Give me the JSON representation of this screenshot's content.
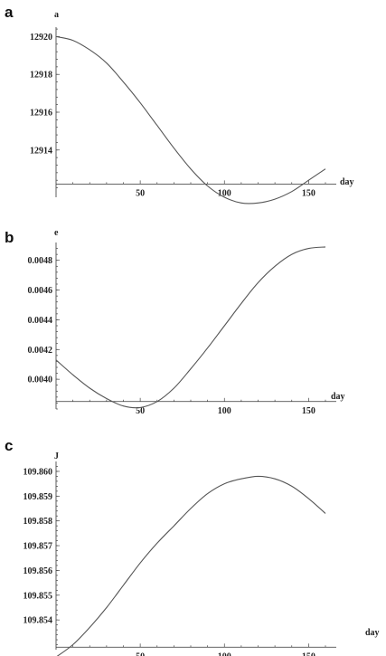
{
  "chart_data": [
    {
      "type": "line",
      "panel": "a",
      "ylabel": "a",
      "xlabel": "day",
      "xlim": [
        0,
        160
      ],
      "ylim": [
        12911.5,
        12920.5
      ],
      "x_axis_y": 12912.2,
      "xticks": [
        50,
        100,
        150
      ],
      "yticks": [
        12914,
        12916,
        12918,
        12920
      ],
      "ytick_labels": [
        "12914",
        "12916",
        "12918",
        "12920"
      ],
      "x": [
        0,
        10,
        20,
        30,
        40,
        50,
        60,
        70,
        80,
        90,
        100,
        110,
        120,
        130,
        140,
        150,
        160
      ],
      "y": [
        12920.0,
        12919.8,
        12919.3,
        12918.6,
        12917.6,
        12916.5,
        12915.3,
        12914.1,
        12913.0,
        12912.1,
        12911.5,
        12911.2,
        12911.2,
        12911.4,
        12911.8,
        12912.4,
        12913.0
      ]
    },
    {
      "type": "line",
      "panel": "b",
      "ylabel": "e",
      "xlabel": "day",
      "xlim": [
        0,
        160
      ],
      "ylim": [
        0.0038,
        0.00492
      ],
      "x_axis_y": 0.00385,
      "xticks": [
        50,
        100,
        150
      ],
      "yticks": [
        0.004,
        0.0042,
        0.0044,
        0.0046,
        0.0048
      ],
      "ytick_labels": [
        "0.0040",
        "0.0042",
        "0.0044",
        "0.0046",
        "0.0048"
      ],
      "x": [
        0,
        10,
        20,
        30,
        40,
        50,
        60,
        70,
        80,
        90,
        100,
        110,
        120,
        130,
        140,
        150,
        160
      ],
      "y": [
        0.00413,
        0.00403,
        0.00394,
        0.00387,
        0.00382,
        0.00381,
        0.00385,
        0.00394,
        0.00407,
        0.00421,
        0.00436,
        0.00451,
        0.00465,
        0.00476,
        0.00484,
        0.00488,
        0.00489
      ]
    },
    {
      "type": "line",
      "panel": "c",
      "ylabel": "J",
      "xlabel": "day",
      "xlim": [
        0,
        160
      ],
      "ylim": [
        109.8528,
        109.8604
      ],
      "x_axis_y": 109.8529,
      "xticks": [
        50,
        100,
        150
      ],
      "yticks": [
        109.854,
        109.855,
        109.856,
        109.857,
        109.858,
        109.859,
        109.86
      ],
      "ytick_labels": [
        "109.854",
        "109.855",
        "109.856",
        "109.857",
        "109.858",
        "109.859",
        "109.860"
      ],
      "x": [
        0,
        10,
        20,
        30,
        40,
        50,
        60,
        70,
        80,
        90,
        100,
        110,
        120,
        130,
        140,
        150,
        160
      ],
      "y": [
        109.8525,
        109.853,
        109.8537,
        109.8545,
        109.8554,
        109.8563,
        109.8571,
        109.8578,
        109.8585,
        109.8591,
        109.8595,
        109.8597,
        109.8598,
        109.8597,
        109.8594,
        109.8589,
        109.8583
      ]
    }
  ],
  "panels": {
    "a": {
      "letter": "a"
    },
    "b": {
      "letter": "b"
    },
    "c": {
      "letter": "c"
    }
  },
  "colors": {
    "curve": "#555555",
    "axis": "#333333"
  }
}
